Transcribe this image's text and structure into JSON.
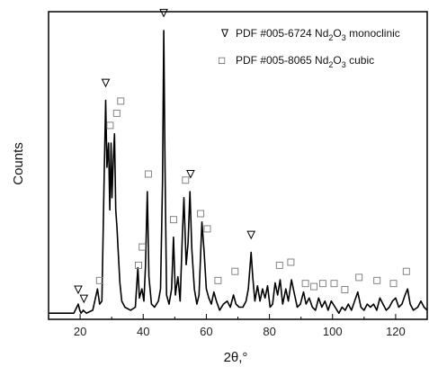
{
  "chart_data": {
    "type": "line",
    "xlabel": "2θ,°",
    "ylabel": "Counts",
    "xlim": [
      10,
      130
    ],
    "ylim": [
      0,
      1.0
    ],
    "x_ticks": [
      20,
      40,
      60,
      80,
      100,
      120
    ],
    "y_ticks_shown": false,
    "grid": false,
    "legend": {
      "placement": "top-right",
      "entries": [
        {
          "marker": "∇",
          "label": "PDF #005-6724 Nd",
          "sub": "2",
          "mid": "O",
          "sub2": "3",
          "suffix": " monoclinic"
        },
        {
          "marker": "□",
          "label": "PDF #005-8065 Nd",
          "sub": "2",
          "mid": "O",
          "sub2": "3",
          "suffix": " cubic"
        }
      ]
    },
    "pattern": [
      [
        10,
        0.02
      ],
      [
        14,
        0.02
      ],
      [
        18,
        0.02
      ],
      [
        19.4,
        0.05
      ],
      [
        19.9,
        0.03
      ],
      [
        20.3,
        0.02
      ],
      [
        21,
        0.03
      ],
      [
        22,
        0.02
      ],
      [
        24,
        0.03
      ],
      [
        25.5,
        0.1
      ],
      [
        26.2,
        0.05
      ],
      [
        26.9,
        0.06
      ],
      [
        27.6,
        0.45
      ],
      [
        28.1,
        0.72
      ],
      [
        28.5,
        0.5
      ],
      [
        29.0,
        0.58
      ],
      [
        29.4,
        0.36
      ],
      [
        29.8,
        0.58
      ],
      [
        30.1,
        0.4
      ],
      [
        30.5,
        0.52
      ],
      [
        30.9,
        0.61
      ],
      [
        31.3,
        0.36
      ],
      [
        31.7,
        0.3
      ],
      [
        32.1,
        0.22
      ],
      [
        32.6,
        0.12
      ],
      [
        33.2,
        0.06
      ],
      [
        34.2,
        0.04
      ],
      [
        36,
        0.03
      ],
      [
        37.5,
        0.04
      ],
      [
        38.3,
        0.17
      ],
      [
        38.8,
        0.07
      ],
      [
        39.6,
        0.1
      ],
      [
        40.2,
        0.06
      ],
      [
        40.7,
        0.17
      ],
      [
        41.3,
        0.42
      ],
      [
        41.8,
        0.14
      ],
      [
        42.6,
        0.05
      ],
      [
        43.6,
        0.04
      ],
      [
        44.8,
        0.06
      ],
      [
        45.5,
        0.1
      ],
      [
        46.1,
        0.45
      ],
      [
        46.5,
        0.95
      ],
      [
        46.9,
        0.5
      ],
      [
        47.4,
        0.08
      ],
      [
        48.2,
        0.05
      ],
      [
        49.0,
        0.1
      ],
      [
        49.6,
        0.27
      ],
      [
        50.2,
        0.08
      ],
      [
        51.0,
        0.14
      ],
      [
        51.7,
        0.06
      ],
      [
        52.4,
        0.28
      ],
      [
        52.9,
        0.4
      ],
      [
        53.6,
        0.18
      ],
      [
        54.2,
        0.25
      ],
      [
        54.8,
        0.42
      ],
      [
        55.4,
        0.23
      ],
      [
        56.2,
        0.1
      ],
      [
        57.0,
        0.05
      ],
      [
        57.7,
        0.08
      ],
      [
        58.6,
        0.32
      ],
      [
        59.3,
        0.22
      ],
      [
        60.0,
        0.1
      ],
      [
        60.8,
        0.07
      ],
      [
        61.6,
        0.05
      ],
      [
        62.4,
        0.09
      ],
      [
        63.2,
        0.06
      ],
      [
        64.2,
        0.03
      ],
      [
        65.4,
        0.05
      ],
      [
        66.6,
        0.06
      ],
      [
        67.6,
        0.04
      ],
      [
        68.6,
        0.08
      ],
      [
        69.4,
        0.05
      ],
      [
        70.4,
        0.04
      ],
      [
        71.6,
        0.04
      ],
      [
        72.6,
        0.06
      ],
      [
        73.3,
        0.1
      ],
      [
        74.2,
        0.22
      ],
      [
        74.7,
        0.14
      ],
      [
        75.4,
        0.06
      ],
      [
        76.2,
        0.11
      ],
      [
        77.0,
        0.06
      ],
      [
        77.8,
        0.1
      ],
      [
        78.6,
        0.07
      ],
      [
        79.4,
        0.11
      ],
      [
        80.2,
        0.04
      ],
      [
        81.0,
        0.05
      ],
      [
        81.8,
        0.12
      ],
      [
        82.6,
        0.08
      ],
      [
        83.4,
        0.13
      ],
      [
        84.2,
        0.05
      ],
      [
        85.2,
        0.1
      ],
      [
        86.0,
        0.06
      ],
      [
        87.0,
        0.13
      ],
      [
        87.8,
        0.09
      ],
      [
        88.8,
        0.04
      ],
      [
        89.8,
        0.05
      ],
      [
        90.8,
        0.09
      ],
      [
        91.6,
        0.05
      ],
      [
        92.6,
        0.07
      ],
      [
        93.6,
        0.04
      ],
      [
        94.6,
        0.03
      ],
      [
        95.6,
        0.07
      ],
      [
        96.6,
        0.04
      ],
      [
        97.6,
        0.06
      ],
      [
        98.6,
        0.03
      ],
      [
        99.6,
        0.06
      ],
      [
        100.8,
        0.04
      ],
      [
        102.0,
        0.02
      ],
      [
        103.0,
        0.04
      ],
      [
        104.0,
        0.03
      ],
      [
        105.0,
        0.05
      ],
      [
        106.0,
        0.03
      ],
      [
        107.0,
        0.06
      ],
      [
        108.0,
        0.09
      ],
      [
        109.0,
        0.04
      ],
      [
        110.0,
        0.03
      ],
      [
        111.0,
        0.05
      ],
      [
        112.0,
        0.04
      ],
      [
        113.0,
        0.05
      ],
      [
        114.0,
        0.03
      ],
      [
        115.0,
        0.07
      ],
      [
        116.0,
        0.05
      ],
      [
        117.0,
        0.03
      ],
      [
        118.0,
        0.04
      ],
      [
        119.0,
        0.06
      ],
      [
        120.0,
        0.07
      ],
      [
        121.0,
        0.04
      ],
      [
        122.0,
        0.05
      ],
      [
        123.0,
        0.08
      ],
      [
        123.8,
        0.1
      ],
      [
        124.6,
        0.05
      ],
      [
        125.6,
        0.03
      ],
      [
        127.0,
        0.04
      ],
      [
        128.0,
        0.06
      ],
      [
        129.0,
        0.04
      ],
      [
        130.0,
        0.03
      ]
    ],
    "monoclinic_markers": [
      [
        19.4,
        0.08
      ],
      [
        21.2,
        0.05
      ],
      [
        28.1,
        0.76
      ],
      [
        46.5,
        0.99
      ],
      [
        55.0,
        0.46
      ],
      [
        74.2,
        0.26
      ]
    ],
    "cubic_markers": [
      [
        26.2,
        0.11
      ],
      [
        29.5,
        0.62
      ],
      [
        31.6,
        0.66
      ],
      [
        32.9,
        0.7
      ],
      [
        38.5,
        0.16
      ],
      [
        39.7,
        0.22
      ],
      [
        41.6,
        0.46
      ],
      [
        49.6,
        0.31
      ],
      [
        53.4,
        0.44
      ],
      [
        58.2,
        0.33
      ],
      [
        60.3,
        0.28
      ],
      [
        63.7,
        0.11
      ],
      [
        69.1,
        0.14
      ],
      [
        83.2,
        0.16
      ],
      [
        86.8,
        0.17
      ],
      [
        91.4,
        0.1
      ],
      [
        94.1,
        0.09
      ],
      [
        96.9,
        0.1
      ],
      [
        100.5,
        0.1
      ],
      [
        103.9,
        0.08
      ],
      [
        108.4,
        0.12
      ],
      [
        114.1,
        0.11
      ],
      [
        119.3,
        0.1
      ],
      [
        123.4,
        0.14
      ]
    ]
  }
}
